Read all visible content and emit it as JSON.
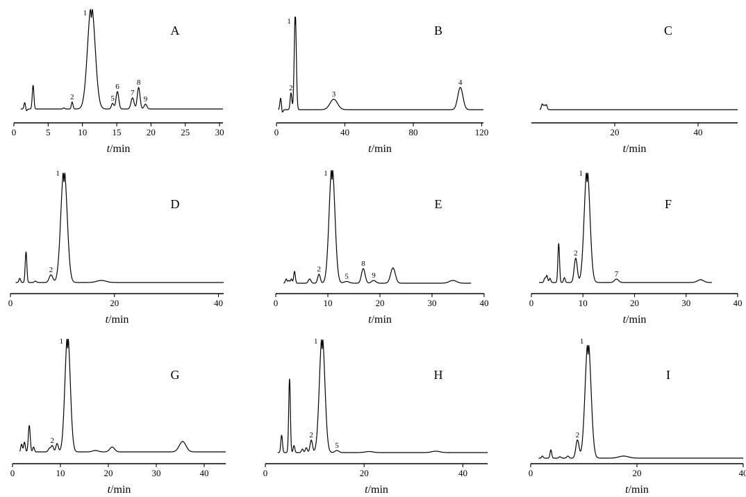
{
  "chart_data": [
    {
      "type": "line",
      "title": "A",
      "xlabel_italic": "t",
      "xlabel_unit": "/min",
      "xlim": [
        0,
        30.5
      ],
      "xticks": [
        0,
        5,
        10,
        15,
        20,
        25,
        30
      ],
      "baseline_x": [
        1,
        30.5
      ],
      "peaks": [
        {
          "x": 1.6,
          "h": 10,
          "w": 0.08,
          "dip": 4
        },
        {
          "x": 2.8,
          "h": 34,
          "w": 0.09
        },
        {
          "x": 7.3,
          "h": 1.5,
          "w": 0.12
        },
        {
          "x": 8.5,
          "h": 10,
          "w": 0.12,
          "label": "2"
        },
        {
          "x": 11.3,
          "h": 150,
          "w": 0.55,
          "split": true,
          "label": "1"
        },
        {
          "x": 14.4,
          "h": 8,
          "w": 0.18,
          "label": "5"
        },
        {
          "x": 15.1,
          "h": 25,
          "w": 0.2,
          "label": "6"
        },
        {
          "x": 17.3,
          "h": 16,
          "w": 0.22,
          "label": "7"
        },
        {
          "x": 18.2,
          "h": 31,
          "w": 0.2,
          "label": "8"
        },
        {
          "x": 19.2,
          "h": 7,
          "w": 0.2,
          "label": "9"
        }
      ]
    },
    {
      "type": "line",
      "title": "B",
      "xlabel_italic": "t",
      "xlabel_unit": "/min",
      "xlim": [
        0,
        121
      ],
      "xticks": [
        0,
        40,
        80,
        120
      ],
      "baseline_x": [
        1,
        121
      ],
      "peaks": [
        {
          "x": 2.5,
          "h": 18,
          "w": 0.25,
          "dip": 6
        },
        {
          "x": 8.5,
          "h": 24,
          "w": 0.5,
          "label": "2"
        },
        {
          "x": 11,
          "h": 140,
          "w": 0.6,
          "split": true,
          "label": "1"
        },
        {
          "x": 33.5,
          "h": 15,
          "w": 2.2,
          "label": "3"
        },
        {
          "x": 107.5,
          "h": 32,
          "w": 1.5,
          "label": "4"
        }
      ]
    },
    {
      "type": "line",
      "title": "C",
      "xlabel_italic": "t",
      "xlabel_unit": "/min",
      "xlim": [
        0,
        49.5
      ],
      "xticks": [
        20,
        40
      ],
      "baseline_x": [
        2,
        49.5
      ],
      "peaks": [
        {
          "x": 2.6,
          "h": 8,
          "w": 0.12
        },
        {
          "x": 3.1,
          "h": 6,
          "w": 0.12
        },
        {
          "x": 3.6,
          "h": 7,
          "w": 0.12
        }
      ]
    },
    {
      "type": "line",
      "title": "D",
      "xlabel_italic": "t",
      "xlabel_unit": "/min",
      "xlim": [
        0,
        41
      ],
      "xticks": [
        0,
        20,
        40
      ],
      "baseline_x": [
        1,
        41
      ],
      "peaks": [
        {
          "x": 1.8,
          "h": 6,
          "w": 0.1
        },
        {
          "x": 3.0,
          "h": 44,
          "w": 0.1
        },
        {
          "x": 4.8,
          "h": 2,
          "w": 0.2
        },
        {
          "x": 7.8,
          "h": 11,
          "w": 0.35,
          "label": "2"
        },
        {
          "x": 10.3,
          "h": 165,
          "w": 0.6,
          "split": true,
          "label": "1"
        },
        {
          "x": 17.5,
          "h": 3,
          "w": 0.9
        }
      ]
    },
    {
      "type": "line",
      "title": "E",
      "xlabel_italic": "t",
      "xlabel_unit": "/min",
      "xlim": [
        0,
        40
      ],
      "xticks": [
        0,
        10,
        20,
        30,
        40
      ],
      "baseline_x": [
        1.5,
        37.5
      ],
      "peaks": [
        {
          "x": 2.0,
          "h": 6,
          "w": 0.1
        },
        {
          "x": 2.5,
          "h": 4,
          "w": 0.1
        },
        {
          "x": 3.0,
          "h": 6,
          "w": 0.1
        },
        {
          "x": 3.6,
          "h": 17,
          "w": 0.1
        },
        {
          "x": 6.5,
          "h": 6,
          "w": 0.25
        },
        {
          "x": 8.3,
          "h": 13,
          "w": 0.25,
          "label": "2"
        },
        {
          "x": 10.8,
          "h": 170,
          "w": 0.55,
          "split": true,
          "label": "1"
        },
        {
          "x": 13.6,
          "h": 2.5,
          "w": 0.5,
          "label": "5"
        },
        {
          "x": 16.8,
          "h": 21,
          "w": 0.35,
          "label": "8"
        },
        {
          "x": 18.8,
          "h": 4,
          "w": 0.4,
          "label": "9"
        },
        {
          "x": 22.5,
          "h": 22,
          "w": 0.45
        },
        {
          "x": 34.0,
          "h": 4,
          "w": 0.7
        }
      ]
    },
    {
      "type": "line",
      "title": "F",
      "xlabel_italic": "t",
      "xlabel_unit": "/min",
      "xlim": [
        0,
        40
      ],
      "xticks": [
        0,
        10,
        20,
        30,
        40
      ],
      "baseline_x": [
        1.5,
        35
      ],
      "peaks": [
        {
          "x": 2.6,
          "h": 6,
          "w": 0.1
        },
        {
          "x": 3.0,
          "h": 10,
          "w": 0.1
        },
        {
          "x": 3.6,
          "h": 6,
          "w": 0.1
        },
        {
          "x": 5.3,
          "h": 56,
          "w": 0.1
        },
        {
          "x": 6.4,
          "h": 7,
          "w": 0.15
        },
        {
          "x": 8.6,
          "h": 35,
          "w": 0.3,
          "label": "2"
        },
        {
          "x": 10.8,
          "h": 165,
          "w": 0.55,
          "split": true,
          "label": "1"
        },
        {
          "x": 16.5,
          "h": 5,
          "w": 0.4,
          "label": "7"
        },
        {
          "x": 32.8,
          "h": 4,
          "w": 0.6
        }
      ]
    },
    {
      "type": "line",
      "title": "G",
      "xlabel_italic": "t",
      "xlabel_unit": "/min",
      "xlim": [
        0,
        44.5
      ],
      "xticks": [
        0,
        10,
        20,
        30,
        40
      ],
      "baseline_x": [
        1.5,
        44.5
      ],
      "peaks": [
        {
          "x": 1.9,
          "h": 11,
          "w": 0.12
        },
        {
          "x": 2.5,
          "h": 14,
          "w": 0.12
        },
        {
          "x": 3.5,
          "h": 38,
          "w": 0.2
        },
        {
          "x": 4.4,
          "h": 7,
          "w": 0.15
        },
        {
          "x": 7.7,
          "h": 5,
          "w": 0.25
        },
        {
          "x": 8.3,
          "h": 9,
          "w": 0.25,
          "label": "2"
        },
        {
          "x": 9.3,
          "h": 12,
          "w": 0.25
        },
        {
          "x": 11.5,
          "h": 170,
          "w": 0.55,
          "split": true,
          "label": "1"
        },
        {
          "x": 17.3,
          "h": 2,
          "w": 0.6
        },
        {
          "x": 20.8,
          "h": 7,
          "w": 0.5
        },
        {
          "x": 35.5,
          "h": 15,
          "w": 0.7
        }
      ]
    },
    {
      "type": "line",
      "title": "H",
      "xlabel_italic": "t",
      "xlabel_unit": "/min",
      "xlim": [
        0,
        45
      ],
      "xticks": [
        0,
        20,
        40
      ],
      "baseline_x": [
        2.5,
        45
      ],
      "peaks": [
        {
          "x": 3.3,
          "h": 25,
          "w": 0.1
        },
        {
          "x": 4.9,
          "h": 106,
          "w": 0.12
        },
        {
          "x": 5.8,
          "h": 10,
          "w": 0.15
        },
        {
          "x": 7.5,
          "h": 5,
          "w": 0.2
        },
        {
          "x": 8.3,
          "h": 7,
          "w": 0.2
        },
        {
          "x": 9.3,
          "h": 18,
          "w": 0.25,
          "label": "2"
        },
        {
          "x": 11.5,
          "h": 170,
          "w": 0.55,
          "split": true,
          "label": "1"
        },
        {
          "x": 14.5,
          "h": 3,
          "w": 0.4,
          "label": "5"
        },
        {
          "x": 21.0,
          "h": 1.5,
          "w": 0.8
        },
        {
          "x": 34.5,
          "h": 2,
          "w": 0.8
        }
      ]
    },
    {
      "type": "line",
      "title": "I",
      "xlabel_italic": "t",
      "xlabel_unit": "/min",
      "xlim": [
        0,
        40
      ],
      "xticks": [
        0,
        20,
        40
      ],
      "baseline_x": [
        1.5,
        40
      ],
      "peaks": [
        {
          "x": 2.2,
          "h": 3,
          "w": 0.1
        },
        {
          "x": 3.8,
          "h": 12,
          "w": 0.12
        },
        {
          "x": 5.5,
          "h": 2,
          "w": 0.2
        },
        {
          "x": 7.0,
          "h": 3,
          "w": 0.2
        },
        {
          "x": 8.8,
          "h": 26,
          "w": 0.3,
          "label": "2"
        },
        {
          "x": 10.8,
          "h": 170,
          "w": 0.55,
          "split": true,
          "label": "1"
        },
        {
          "x": 17.5,
          "h": 3,
          "w": 0.9
        }
      ]
    }
  ]
}
